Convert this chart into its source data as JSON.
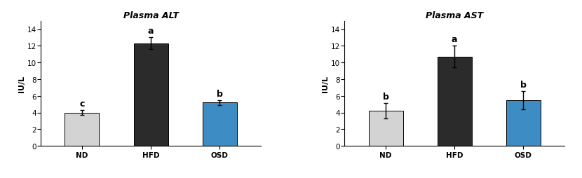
{
  "alt": {
    "title": "Plasma ALT",
    "categories": [
      "ND",
      "HFD",
      "OSD"
    ],
    "values": [
      4.0,
      12.3,
      5.2
    ],
    "errors": [
      0.3,
      0.7,
      0.3
    ],
    "letters": [
      "c",
      "a",
      "b"
    ],
    "colors": [
      "#d3d3d3",
      "#2b2b2b",
      "#3d8dc4"
    ],
    "ylabel": "IU/L",
    "ylim": [
      0,
      15
    ],
    "yticks": [
      0,
      2,
      4,
      6,
      8,
      10,
      12,
      14
    ]
  },
  "ast": {
    "title": "Plasma AST",
    "categories": [
      "ND",
      "HFD",
      "OSD"
    ],
    "values": [
      4.2,
      10.7,
      5.5
    ],
    "errors": [
      0.9,
      1.3,
      1.1
    ],
    "letters": [
      "b",
      "a",
      "b"
    ],
    "colors": [
      "#d3d3d3",
      "#2b2b2b",
      "#3d8dc4"
    ],
    "ylabel": "IU/L",
    "ylim": [
      0,
      15
    ],
    "yticks": [
      0,
      2,
      4,
      6,
      8,
      10,
      12,
      14
    ]
  },
  "title_fontsize": 9,
  "label_fontsize": 8,
  "tick_fontsize": 7.5,
  "letter_fontsize": 9,
  "bar_width": 0.5,
  "background_color": "#ffffff"
}
